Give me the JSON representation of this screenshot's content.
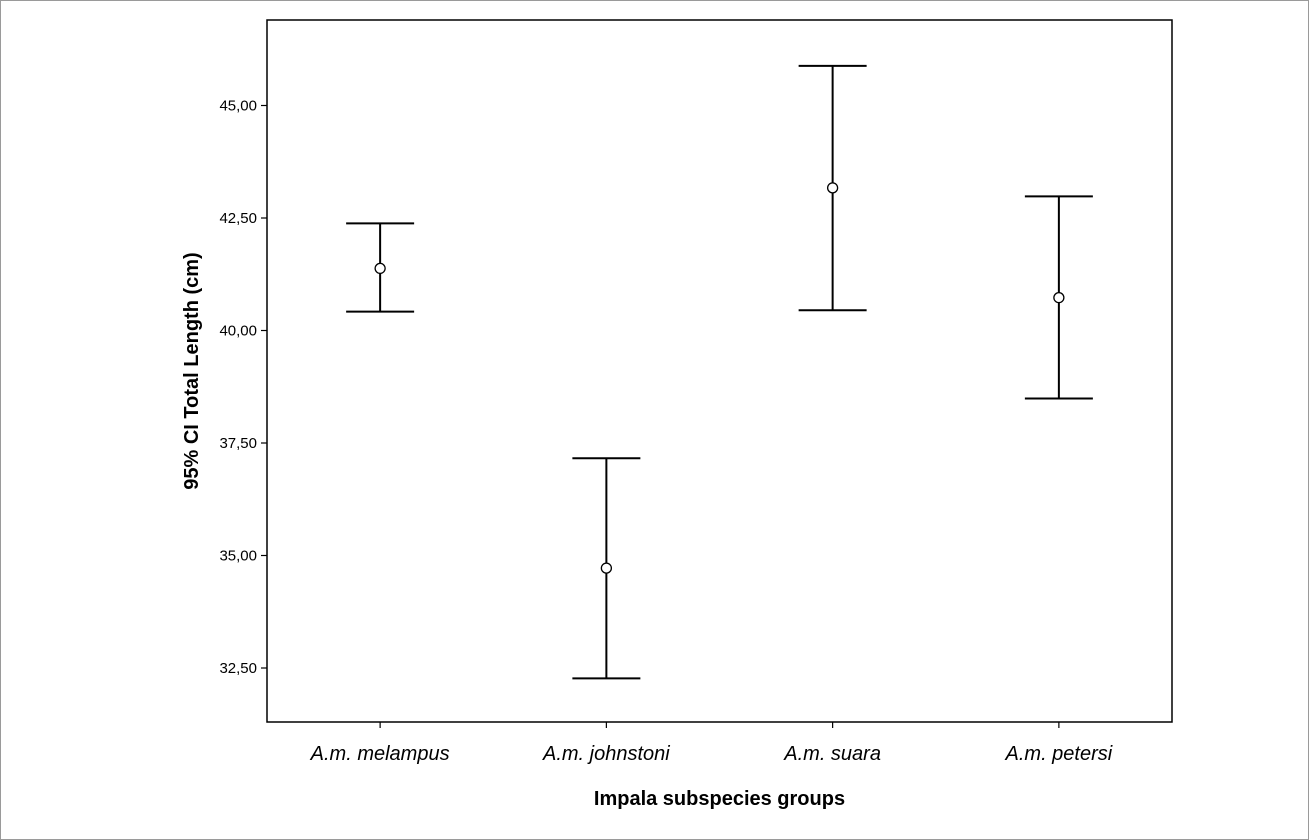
{
  "chart_data": {
    "type": "errorbar",
    "title": "",
    "xlabel": "Impala subspecies groups",
    "ylabel": "95% CI Total Length (cm)",
    "categories": [
      "A.m. melampus",
      "A.m. johnstoni",
      "A.m. suara",
      "A.m. petersi"
    ],
    "means": [
      41.38,
      34.72,
      43.17,
      40.73
    ],
    "lower": [
      40.42,
      32.27,
      40.45,
      38.49
    ],
    "upper": [
      42.38,
      37.16,
      45.88,
      42.98
    ],
    "yticks": [
      32.5,
      35.0,
      37.5,
      40.0,
      42.5,
      45.0
    ],
    "ytick_labels": [
      "32,50",
      "35,00",
      "37,50",
      "40,00",
      "42,50",
      "45,00"
    ],
    "ylim": [
      31.3,
      46.9
    ],
    "grid": false,
    "colors": {
      "line": "#000000",
      "frame": "#000000",
      "background": "#ffffff"
    }
  }
}
